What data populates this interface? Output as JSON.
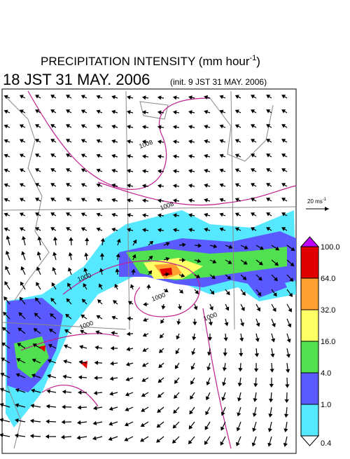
{
  "title": {
    "main": "PRECIPITATION INTENSITY (mm hour",
    "superscript": "-1",
    "close": ")"
  },
  "subtitle": {
    "time": "18 JST 31 MAY. 2006",
    "init": "(init. 9 JST 31 MAY. 2006)"
  },
  "scale_arrow": {
    "label": "20 ms",
    "superscript": "-1"
  },
  "colorbar": {
    "labels": [
      "100.0",
      "64.0",
      "32.0",
      "16.0",
      "4.0",
      "1.0",
      "0.4"
    ],
    "colors": [
      "#e00000",
      "#ffa030",
      "#ffff66",
      "#50e050",
      "#5a5aff",
      "#55e8ff"
    ],
    "over_color": "#c000ff",
    "under_color": "#ffffff"
  },
  "contour_labels": [
    "1008",
    "1008",
    "1000",
    "1000",
    "1000",
    "1000"
  ]
}
